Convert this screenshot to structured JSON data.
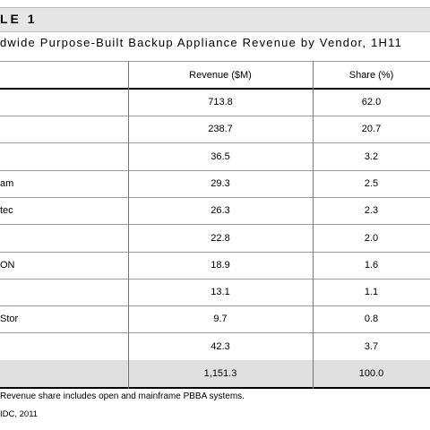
{
  "header": {
    "title": "LE 1",
    "subtitle": "dwide Purpose-Built Backup Appliance Revenue by Vendor, 1H11"
  },
  "table": {
    "columns": [
      "Revenue ($M)",
      "Share (%)"
    ],
    "rows": [
      {
        "revenue": "713.8",
        "share": "62.0"
      },
      {
        "revenue": "238.7",
        "share": "20.7"
      },
      {
        "revenue": "36.5",
        "share": "3.2"
      },
      {
        "vendor": "am",
        "revenue": "29.3",
        "share": "2.5"
      },
      {
        "vendor": "tec",
        "revenue": "26.3",
        "share": "2.3"
      },
      {
        "revenue": "22.8",
        "share": "2.0"
      },
      {
        "vendor": "ON",
        "revenue": "18.9",
        "share": "1.6"
      },
      {
        "revenue": "13.1",
        "share": "1.1"
      },
      {
        "vendor": "Stor",
        "revenue": "9.7",
        "share": "0.8"
      },
      {
        "revenue": "42.3",
        "share": "3.7"
      }
    ],
    "total": {
      "revenue": "1,151.3",
      "share": "100.0"
    }
  },
  "footnote": "Revenue share includes open and mainframe PBBA systems.",
  "source": "IDC, 2011"
}
